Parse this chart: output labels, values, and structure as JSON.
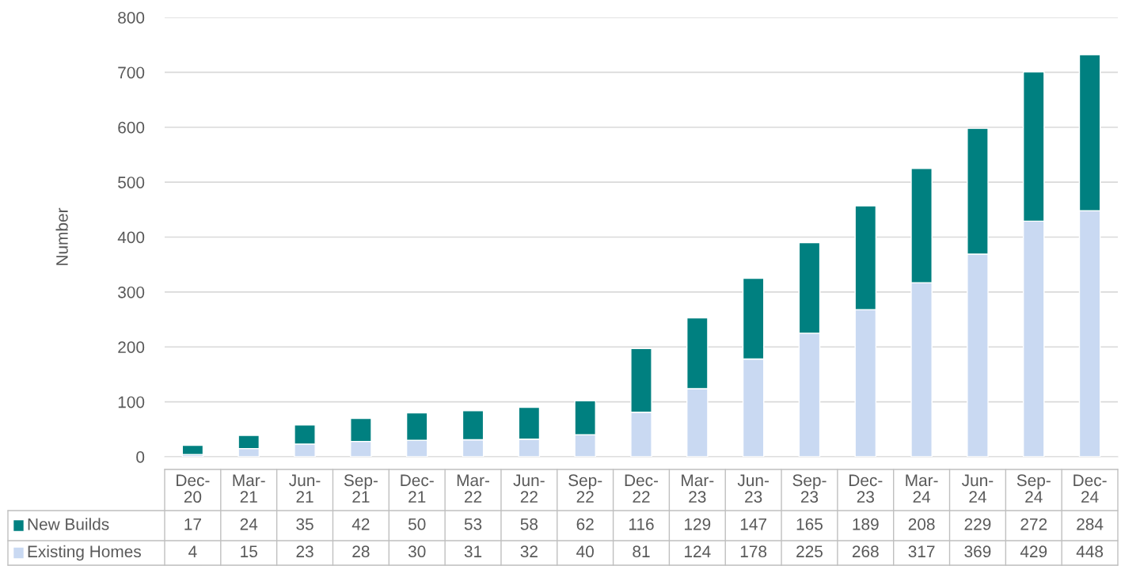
{
  "chart_data": {
    "type": "bar",
    "stacked": true,
    "ylabel": "Number",
    "categories": [
      "Dec-\n20",
      "Mar-\n21",
      "Jun-\n21",
      "Sep-\n21",
      "Dec-\n21",
      "Mar-\n22",
      "Jun-\n22",
      "Sep-\n22",
      "Dec-\n22",
      "Mar-\n23",
      "Jun-\n23",
      "Sep-\n23",
      "Dec-\n23",
      "Mar-\n24",
      "Jun-\n24",
      "Sep-\n24",
      "Dec-\n24"
    ],
    "series": [
      {
        "name": "Existing Homes",
        "color": "#c9d9f2",
        "values": [
          4,
          15,
          23,
          28,
          30,
          31,
          32,
          40,
          81,
          124,
          178,
          225,
          268,
          317,
          369,
          429,
          448
        ]
      },
      {
        "name": "New Builds",
        "color": "#008080",
        "values": [
          17,
          24,
          35,
          42,
          50,
          53,
          58,
          62,
          116,
          129,
          147,
          165,
          189,
          208,
          229,
          272,
          284
        ]
      }
    ],
    "ylim": [
      0,
      800
    ],
    "yticks": [
      0,
      100,
      200,
      300,
      400,
      500,
      600,
      700,
      800
    ],
    "grid": "y",
    "legend": "bottom",
    "data_labels": true
  }
}
